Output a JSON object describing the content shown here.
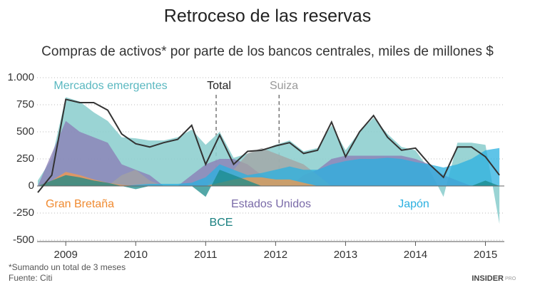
{
  "chart_data": {
    "type": "area",
    "title": "Retroceso de las reservas",
    "subtitle": "Compras de activos* por parte de los bancos centrales, miles de millones $",
    "footnote": "*Sumando un total de 3 meses",
    "source": "Fuente: Citi",
    "brand": "INSIDER",
    "brand_tag": "PRO",
    "x": [
      2008.6,
      2008.8,
      2009.0,
      2009.2,
      2009.4,
      2009.6,
      2009.8,
      2010.0,
      2010.2,
      2010.4,
      2010.6,
      2010.8,
      2011.0,
      2011.2,
      2011.4,
      2011.6,
      2011.8,
      2012.0,
      2012.2,
      2012.4,
      2012.6,
      2012.8,
      2013.0,
      2013.2,
      2013.4,
      2013.6,
      2013.8,
      2014.0,
      2014.2,
      2014.4,
      2014.6,
      2014.8,
      2015.0,
      2015.2
    ],
    "xlim": [
      2008.59,
      2015.27
    ],
    "xticks": [
      2009,
      2010,
      2011,
      2012,
      2013,
      2014,
      2015
    ],
    "ylim": [
      -500,
      1000
    ],
    "yticks": [
      {
        "value": 1000,
        "label": "1.000"
      },
      750,
      500,
      250,
      0,
      -250,
      -500
    ],
    "grid": true,
    "series": [
      {
        "name": "Mercados emergentes",
        "color": "#8fcfcf",
        "values": [
          50,
          250,
          820,
          780,
          680,
          600,
          450,
          440,
          420,
          420,
          450,
          520,
          380,
          500,
          260,
          300,
          330,
          380,
          420,
          320,
          350,
          560,
          330,
          500,
          630,
          480,
          360,
          330,
          150,
          -100,
          400,
          400,
          380,
          -350
        ]
      },
      {
        "name": "Estados Unidos",
        "color": "#8a7bb5",
        "values": [
          0,
          300,
          600,
          500,
          450,
          400,
          200,
          150,
          100,
          0,
          0,
          100,
          200,
          250,
          250,
          200,
          100,
          50,
          0,
          100,
          150,
          250,
          280,
          280,
          280,
          280,
          280,
          250,
          200,
          100,
          50,
          0,
          0,
          0
        ]
      },
      {
        "name": "Suiza",
        "color": "#a3a3a3",
        "values": [
          0,
          0,
          0,
          0,
          0,
          0,
          100,
          150,
          50,
          0,
          0,
          0,
          0,
          100,
          150,
          300,
          350,
          300,
          250,
          200,
          100,
          0,
          0,
          0,
          0,
          0,
          0,
          0,
          0,
          0,
          0,
          0,
          0,
          0
        ]
      },
      {
        "name": "Japón",
        "color": "#2ab0e0",
        "values": [
          0,
          0,
          20,
          30,
          30,
          20,
          0,
          10,
          20,
          20,
          20,
          30,
          80,
          200,
          150,
          100,
          120,
          150,
          180,
          150,
          150,
          200,
          230,
          250,
          250,
          260,
          250,
          220,
          200,
          170,
          200,
          250,
          330,
          350
        ]
      },
      {
        "name": "Gran Bretaña",
        "color": "#f59a4a",
        "values": [
          0,
          50,
          130,
          100,
          60,
          30,
          10,
          0,
          0,
          0,
          0,
          0,
          0,
          30,
          60,
          80,
          80,
          60,
          60,
          30,
          0,
          0,
          0,
          0,
          0,
          0,
          0,
          0,
          0,
          0,
          0,
          0,
          0,
          0
        ]
      },
      {
        "name": "BCE",
        "color": "#1a8a8a",
        "values": [
          0,
          50,
          100,
          80,
          50,
          30,
          0,
          -30,
          0,
          0,
          0,
          0,
          -100,
          150,
          100,
          50,
          0,
          0,
          0,
          0,
          0,
          0,
          0,
          0,
          0,
          0,
          0,
          0,
          0,
          0,
          0,
          0,
          50,
          0
        ]
      }
    ],
    "total": {
      "name": "Total",
      "color": "#333333",
      "values": [
        -60,
        100,
        800,
        770,
        770,
        700,
        480,
        390,
        360,
        400,
        430,
        560,
        200,
        470,
        200,
        320,
        330,
        370,
        400,
        300,
        330,
        590,
        270,
        500,
        650,
        450,
        330,
        350,
        200,
        80,
        360,
        360,
        270,
        100
      ]
    }
  }
}
